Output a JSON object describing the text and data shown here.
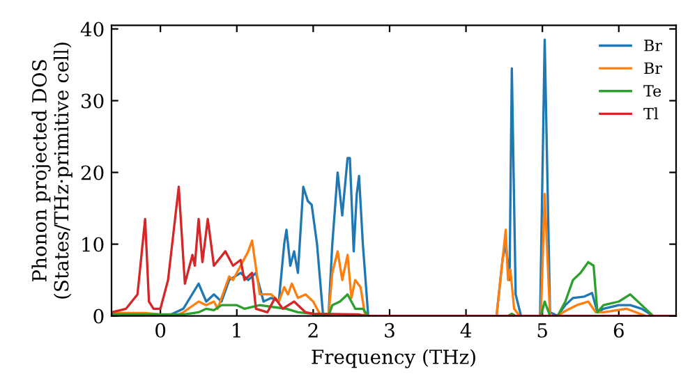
{
  "chart_data": {
    "type": "line",
    "xlabel": "Frequency (THz)",
    "ylabel": "Phonon projected DOS\n(States/THz·primitive cell)",
    "xlim": [
      -0.64,
      6.75
    ],
    "ylim": [
      0,
      40.5
    ],
    "xticks": [
      0,
      1,
      2,
      3,
      4,
      5,
      6
    ],
    "yticks": [
      0,
      10,
      20,
      30,
      40
    ],
    "grid": false,
    "legend": "top right",
    "marker": "none",
    "line_style": "solid",
    "series": [
      {
        "name": "Br",
        "color": "#1f77b4",
        "x": [
          0.1,
          0.3,
          0.5,
          0.6,
          0.7,
          0.8,
          0.9,
          1.05,
          1.15,
          1.25,
          1.35,
          1.45,
          1.55,
          1.62,
          1.65,
          1.7,
          1.75,
          1.8,
          1.87,
          1.93,
          1.98,
          2.05,
          2.13,
          2.2,
          2.25,
          2.32,
          2.38,
          2.45,
          2.48,
          2.53,
          2.57,
          2.6,
          2.65,
          2.72,
          4.4,
          4.48,
          4.52,
          4.57,
          4.6,
          4.65,
          4.72,
          4.97,
          5.03,
          5.1,
          5.2,
          5.3,
          5.4,
          5.55,
          5.65,
          5.72,
          5.8,
          6.0,
          6.15,
          6.3,
          6.45,
          6.75
        ],
        "values": [
          0,
          1,
          4.5,
          2,
          3,
          2,
          5,
          6,
          5,
          6,
          2,
          2.5,
          2,
          10,
          12,
          7,
          9,
          6,
          18,
          16,
          15.5,
          10,
          0,
          0,
          10,
          20,
          14,
          22,
          22,
          9,
          17,
          19.5,
          10,
          0,
          0,
          8,
          10,
          5,
          34.5,
          3,
          0,
          0,
          38.5,
          0.5,
          0,
          1.5,
          2.5,
          2.7,
          3.2,
          0.5,
          1,
          1.5,
          1.5,
          1,
          0,
          0
        ]
      },
      {
        "name": "Br",
        "color": "#ff7f0e",
        "x": [
          -0.64,
          -0.2,
          0.2,
          0.3,
          0.5,
          0.6,
          0.7,
          0.75,
          0.9,
          0.95,
          1.05,
          1.15,
          1.2,
          1.3,
          1.45,
          1.55,
          1.62,
          1.67,
          1.72,
          1.8,
          1.9,
          2.0,
          2.1,
          2.2,
          2.25,
          2.32,
          2.38,
          2.45,
          2.5,
          2.55,
          2.62,
          2.68,
          4.4,
          4.48,
          4.52,
          4.55,
          4.58,
          4.63,
          4.7,
          4.98,
          5.03,
          5.1,
          5.2,
          5.3,
          5.45,
          5.6,
          5.7,
          5.8,
          6.1,
          6.35,
          6.75
        ],
        "values": [
          0.4,
          0.4,
          0,
          0.5,
          2,
          1.5,
          2,
          1,
          5.5,
          5,
          7,
          9,
          10.5,
          3,
          3,
          2,
          4,
          3,
          4.5,
          2.5,
          3,
          2,
          0,
          0,
          6,
          9,
          5,
          8.5,
          2.5,
          5,
          4,
          0,
          0,
          8,
          12,
          5,
          6.5,
          1,
          0,
          0,
          17,
          0,
          0,
          0.7,
          1.5,
          2,
          0.5,
          0.5,
          1,
          0,
          0
        ]
      },
      {
        "name": "Te",
        "color": "#2ca02c",
        "x": [
          -0.64,
          0.3,
          0.5,
          0.6,
          0.7,
          0.8,
          1.0,
          1.1,
          1.3,
          1.5,
          1.65,
          1.8,
          2.0,
          2.1,
          2.2,
          2.25,
          2.35,
          2.45,
          2.55,
          2.65,
          2.72,
          4.55,
          4.6,
          4.65,
          4.98,
          5.03,
          5.1,
          5.2,
          5.3,
          5.4,
          5.5,
          5.6,
          5.67,
          5.72,
          5.8,
          6.0,
          6.15,
          6.3,
          6.45,
          6.75
        ],
        "values": [
          0.2,
          0.2,
          0.5,
          1,
          0.8,
          1.5,
          1.5,
          1,
          1.5,
          1.2,
          1,
          0.5,
          0.3,
          0,
          0,
          1.5,
          2,
          3,
          1,
          1,
          0,
          0,
          0.3,
          0,
          0,
          2,
          0,
          0,
          2,
          5,
          6,
          7.5,
          7,
          0.5,
          1.5,
          2,
          3,
          1.5,
          0,
          0
        ]
      },
      {
        "name": "Tl",
        "color": "#d62728",
        "x": [
          -0.64,
          -0.45,
          -0.3,
          -0.2,
          -0.15,
          -0.09,
          0.0,
          0.1,
          0.24,
          0.32,
          0.42,
          0.45,
          0.5,
          0.55,
          0.62,
          0.7,
          0.85,
          0.95,
          1.05,
          1.1,
          1.2,
          1.25,
          1.4,
          1.5,
          1.6,
          1.75,
          1.9,
          2.0,
          2.6,
          2.7,
          6.75
        ],
        "values": [
          0.5,
          1,
          3,
          13.5,
          2,
          1,
          1,
          5,
          18,
          4.5,
          8.5,
          7,
          13.5,
          7.5,
          13.5,
          7,
          9,
          7,
          7.8,
          5,
          6,
          1,
          0.5,
          2.5,
          1,
          2,
          0.5,
          0.3,
          0.2,
          0,
          0
        ]
      }
    ]
  }
}
